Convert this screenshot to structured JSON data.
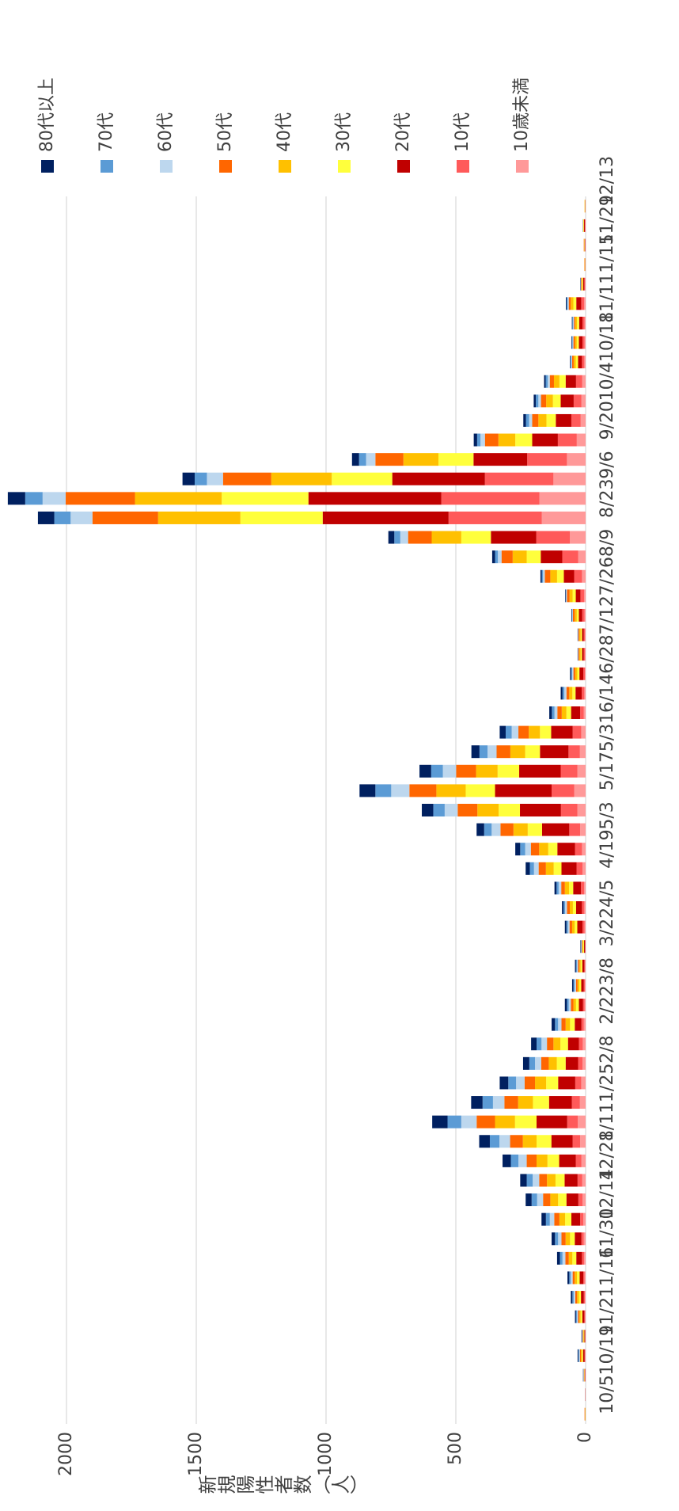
{
  "chart_data": {
    "type": "bar",
    "stacked": true,
    "y_label": "新規陽性者数（人）",
    "categories": [
      "10/5",
      null,
      "10/19",
      null,
      "11/2",
      null,
      "11/16",
      null,
      "11/30",
      null,
      "12/14",
      null,
      "12/28",
      null,
      "1/11",
      null,
      "1/25",
      null,
      "2/8",
      null,
      "2/22",
      null,
      "3/8",
      null,
      "3/22",
      null,
      "4/5",
      null,
      "4/19",
      null,
      "5/3",
      null,
      "5/17",
      null,
      "5/31",
      null,
      "6/14",
      null,
      "6/28",
      null,
      "7/12",
      null,
      "7/26",
      null,
      "8/9",
      null,
      "8/23",
      null,
      "9/6",
      null,
      "9/20",
      null,
      "10/4",
      null,
      "10/18",
      null,
      "11/1",
      null,
      "11/15",
      null,
      "11/29",
      null,
      "12/13"
    ],
    "ylim": [
      0,
      2000
    ],
    "yticks": [
      0,
      500,
      1000,
      1500,
      2000
    ],
    "grid": true,
    "legend": "right",
    "series": [
      {
        "name": "80代以上",
        "color": "#002060",
        "values": [
          0,
          0,
          1,
          3,
          2,
          4,
          6,
          7,
          11,
          13,
          17,
          23,
          25,
          32,
          41,
          59,
          44,
          33,
          24,
          21,
          13,
          8,
          5,
          4,
          2,
          6,
          6,
          8,
          16,
          19,
          29,
          44,
          61,
          45,
          31,
          23,
          10,
          7,
          4,
          1,
          1,
          2,
          2,
          5,
          11,
          23,
          63,
          67,
          47,
          27,
          13,
          10,
          8,
          6,
          2,
          2,
          2,
          3,
          1,
          0,
          0,
          0,
          0
        ]
      },
      {
        "name": "70代",
        "color": "#5b9bd5",
        "values": [
          0,
          0,
          1,
          3,
          1,
          4,
          5,
          6,
          10,
          12,
          15,
          21,
          23,
          29,
          37,
          53,
          40,
          30,
          22,
          19,
          12,
          7,
          5,
          4,
          2,
          6,
          6,
          8,
          16,
          19,
          29,
          44,
          61,
          45,
          31,
          23,
          10,
          7,
          4,
          1,
          1,
          2,
          2,
          5,
          11,
          23,
          63,
          67,
          47,
          27,
          13,
          12,
          10,
          8,
          3,
          3,
          3,
          4,
          1,
          0,
          0,
          1,
          0
        ]
      },
      {
        "name": "60代",
        "color": "#bdd7ee",
        "values": [
          0,
          0,
          1,
          3,
          2,
          4,
          6,
          7,
          11,
          13,
          17,
          23,
          25,
          32,
          41,
          59,
          44,
          33,
          24,
          21,
          13,
          8,
          5,
          4,
          2,
          6,
          7,
          10,
          18,
          22,
          34,
          50,
          70,
          51,
          35,
          26,
          11,
          8,
          5,
          1,
          1,
          2,
          3,
          7,
          14,
          30,
          84,
          89,
          62,
          36,
          17,
          12,
          10,
          8,
          3,
          3,
          3,
          4,
          1,
          0,
          0,
          1,
          0
        ]
      },
      {
        "name": "50代",
        "color": "#ff6600",
        "values": [
          1,
          0,
          1,
          4,
          2,
          5,
          7,
          8,
          13,
          16,
          20,
          28,
          30,
          38,
          49,
          71,
          53,
          40,
          29,
          25,
          16,
          10,
          6,
          5,
          2,
          10,
          11,
          14,
          28,
          32,
          50,
          76,
          104,
          77,
          53,
          40,
          17,
          11,
          7,
          4,
          4,
          7,
          10,
          21,
          43,
          91,
          253,
          267,
          186,
          108,
          52,
          24,
          20,
          16,
          6,
          6,
          5,
          8,
          2,
          1,
          1,
          1,
          0
        ]
      },
      {
        "name": "40代",
        "color": "#ffc000",
        "values": [
          1,
          0,
          1,
          4,
          2,
          5,
          7,
          9,
          14,
          17,
          22,
          30,
          33,
          42,
          53,
          77,
          57,
          43,
          31,
          27,
          17,
          10,
          7,
          5,
          3,
          10,
          12,
          16,
          30,
          35,
          55,
          82,
          113,
          83,
          57,
          43,
          18,
          12,
          8,
          5,
          5,
          8,
          12,
          26,
          54,
          114,
          317,
          334,
          233,
          135,
          65,
          31,
          26,
          21,
          8,
          7,
          7,
          10,
          3,
          1,
          1,
          1,
          1
        ]
      },
      {
        "name": "30代",
        "color": "#ffff3c",
        "values": [
          1,
          0,
          1,
          4,
          2,
          6,
          8,
          10,
          15,
          18,
          24,
          32,
          35,
          45,
          57,
          83,
          62,
          46,
          34,
          29,
          18,
          11,
          7,
          6,
          3,
          10,
          12,
          16,
          30,
          35,
          55,
          82,
          113,
          83,
          57,
          43,
          18,
          12,
          8,
          5,
          5,
          8,
          12,
          26,
          54,
          114,
          317,
          334,
          233,
          135,
          65,
          36,
          30,
          24,
          9,
          8,
          8,
          11,
          3,
          1,
          1,
          2,
          1
        ]
      },
      {
        "name": "20代",
        "color": "#c00000",
        "values": [
          1,
          1,
          2,
          6,
          3,
          8,
          11,
          14,
          22,
          26,
          34,
          46,
          50,
          64,
          82,
          118,
          88,
          66,
          48,
          42,
          26,
          16,
          10,
          8,
          4,
          20,
          23,
          30,
          58,
          68,
          105,
          158,
          218,
          160,
          110,
          83,
          35,
          24,
          15,
          7,
          7,
          13,
          18,
          40,
          83,
          175,
          485,
          512,
          357,
          207,
          99,
          60,
          50,
          40,
          15,
          14,
          13,
          19,
          5,
          1,
          2,
          3,
          1
        ]
      },
      {
        "name": "10代",
        "color": "#ff5a5a",
        "values": [
          0,
          0,
          1,
          2,
          1,
          3,
          4,
          5,
          8,
          9,
          12,
          16,
          18,
          22,
          29,
          41,
          31,
          23,
          17,
          15,
          9,
          6,
          4,
          3,
          1,
          8,
          9,
          12,
          23,
          27,
          42,
          63,
          87,
          64,
          44,
          33,
          14,
          10,
          6,
          5,
          5,
          9,
          14,
          30,
          61,
          129,
          359,
          378,
          264,
          153,
          73,
          36,
          30,
          24,
          9,
          8,
          8,
          11,
          3,
          1,
          1,
          2,
          1
        ]
      },
      {
        "name": "10歳未満",
        "color": "#ff9999",
        "values": [
          0,
          0,
          1,
          2,
          1,
          2,
          3,
          4,
          6,
          7,
          9,
          12,
          13,
          16,
          21,
          30,
          22,
          17,
          12,
          11,
          7,
          4,
          3,
          2,
          1,
          4,
          5,
          6,
          12,
          14,
          21,
          32,
          44,
          32,
          22,
          17,
          7,
          5,
          3,
          2,
          2,
          4,
          6,
          14,
          29,
          61,
          169,
          178,
          124,
          72,
          34,
          19,
          16,
          13,
          5,
          4,
          4,
          6,
          2,
          0,
          1,
          1,
          0
        ]
      }
    ]
  }
}
